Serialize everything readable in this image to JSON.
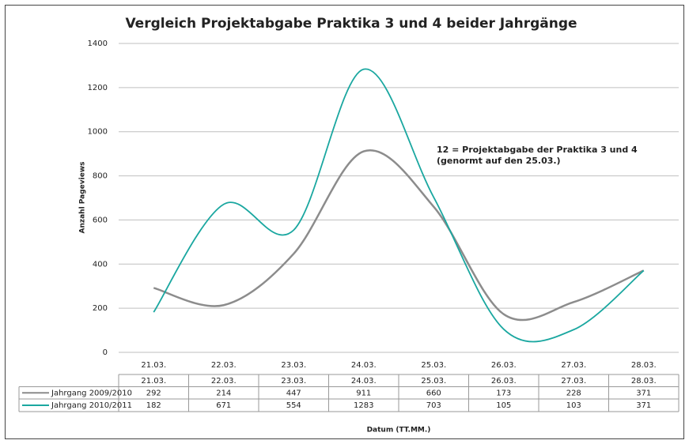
{
  "chart_data": {
    "type": "line",
    "title": "Vergleich Projektabgabe Praktika 3 und 4 beider Jahrgänge",
    "y_label": "Anzahl Pageviews",
    "x_label": "Datum (TT.MM.)",
    "annotation": [
      "12 = Projektabgabe der Praktika 3 und 4",
      "(genormt auf den 25.03.)"
    ],
    "categories": [
      "21.03.",
      "22.03.",
      "23.03.",
      "24.03.",
      "25.03.",
      "26.03.",
      "27.03.",
      "28.03."
    ],
    "series": [
      {
        "name": "Jahrgang 2009/2010",
        "color": "#8c8c8c",
        "values": [
          292,
          214,
          447,
          911,
          660,
          173,
          228,
          371
        ]
      },
      {
        "name": "Jahrgang 2010/2011",
        "color": "#1aa7a0",
        "values": [
          182,
          671,
          554,
          1283,
          703,
          105,
          103,
          371
        ]
      }
    ],
    "ylim": [
      0,
      1400
    ],
    "yticks": [
      0,
      200,
      400,
      600,
      800,
      1000,
      1200,
      1400
    ],
    "grid": true,
    "smooth": true
  }
}
